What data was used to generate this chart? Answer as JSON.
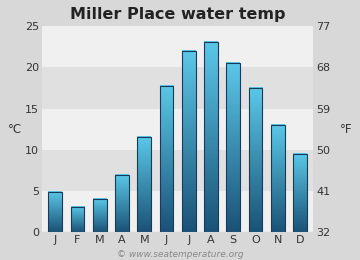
{
  "title": "Miller Place water temp",
  "months": [
    "J",
    "F",
    "M",
    "A",
    "M",
    "J",
    "J",
    "A",
    "S",
    "O",
    "N",
    "D"
  ],
  "values_c": [
    4.9,
    3.1,
    4.0,
    7.0,
    11.5,
    17.7,
    22.0,
    23.1,
    20.5,
    17.5,
    13.0,
    9.5
  ],
  "ylim_c": [
    0,
    25
  ],
  "yticks_c": [
    0,
    5,
    10,
    15,
    20,
    25
  ],
  "yticks_f": [
    32,
    41,
    50,
    59,
    68,
    77
  ],
  "ylabel_left": "°C",
  "ylabel_right": "°F",
  "bar_color_top": "#5bc8e8",
  "bar_color_bottom": "#1a5276",
  "bar_edge_color": "#1a3a5c",
  "bg_color": "#d8d8d8",
  "band_light": "#f0f0f0",
  "band_dark": "#e0e0e0",
  "watermark": "© www.seatemperature.org",
  "title_fontsize": 11.5,
  "tick_fontsize": 8,
  "label_fontsize": 8.5,
  "watermark_fontsize": 6.5
}
